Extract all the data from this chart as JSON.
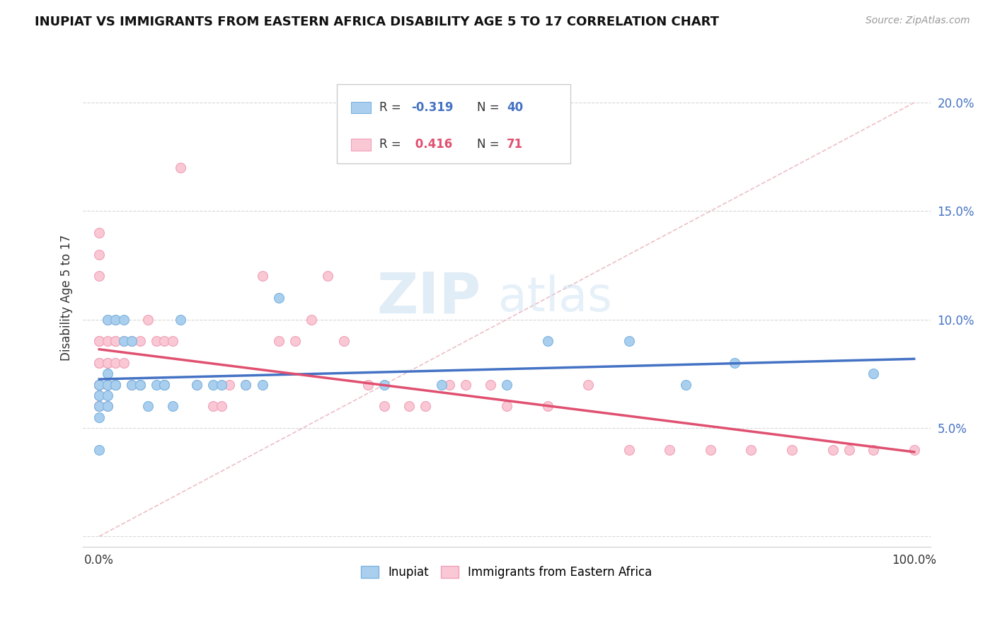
{
  "title": "INUPIAT VS IMMIGRANTS FROM EASTERN AFRICA DISABILITY AGE 5 TO 17 CORRELATION CHART",
  "source": "Source: ZipAtlas.com",
  "ylabel": "Disability Age 5 to 17",
  "xlim": [
    -0.02,
    1.02
  ],
  "ylim": [
    -0.005,
    0.225
  ],
  "inupiat_color": "#aacfee",
  "inupiat_edge_color": "#7ab3e0",
  "immigrants_color": "#f9c8d4",
  "immigrants_edge_color": "#f0a0b8",
  "inupiat_line_color": "#4472c4",
  "immigrants_line_color": "#e05070",
  "legend_label1": "Inupiat",
  "legend_label2": "Immigrants from Eastern Africa",
  "watermark_zip": "ZIP",
  "watermark_atlas": "atlas",
  "inupiat_x": [
    0.0,
    0.0,
    0.0,
    0.0,
    0.0,
    0.0,
    0.01,
    0.01,
    0.01,
    0.01,
    0.01,
    0.02,
    0.02,
    0.02,
    0.03,
    0.03,
    0.04,
    0.04,
    0.05,
    0.05,
    0.06,
    0.07,
    0.08,
    0.08,
    0.08,
    0.09,
    0.1,
    0.12,
    0.14,
    0.15,
    0.18,
    0.2,
    0.22,
    0.35,
    0.42,
    0.5,
    0.55,
    0.65,
    0.72,
    0.78,
    0.95
  ],
  "inupiat_y": [
    0.07,
    0.07,
    0.065,
    0.06,
    0.055,
    0.04,
    0.07,
    0.065,
    0.06,
    0.075,
    0.1,
    0.07,
    0.1,
    0.07,
    0.1,
    0.09,
    0.09,
    0.07,
    0.07,
    0.07,
    0.06,
    0.07,
    0.07,
    0.07,
    0.07,
    0.06,
    0.1,
    0.07,
    0.07,
    0.07,
    0.07,
    0.07,
    0.11,
    0.07,
    0.07,
    0.07,
    0.09,
    0.09,
    0.07,
    0.08,
    0.075
  ],
  "immigrants_x": [
    0.0,
    0.0,
    0.0,
    0.0,
    0.0,
    0.0,
    0.0,
    0.0,
    0.0,
    0.0,
    0.0,
    0.0,
    0.0,
    0.0,
    0.0,
    0.0,
    0.0,
    0.01,
    0.01,
    0.01,
    0.01,
    0.01,
    0.01,
    0.01,
    0.01,
    0.02,
    0.02,
    0.02,
    0.02,
    0.02,
    0.03,
    0.03,
    0.04,
    0.04,
    0.05,
    0.05,
    0.06,
    0.07,
    0.08,
    0.09,
    0.1,
    0.12,
    0.14,
    0.15,
    0.16,
    0.18,
    0.2,
    0.22,
    0.24,
    0.26,
    0.28,
    0.3,
    0.33,
    0.35,
    0.38,
    0.4,
    0.43,
    0.45,
    0.48,
    0.5,
    0.55,
    0.6,
    0.65,
    0.7,
    0.75,
    0.8,
    0.85,
    0.9,
    0.95,
    1.0,
    0.92
  ],
  "immigrants_y": [
    0.065,
    0.065,
    0.06,
    0.07,
    0.07,
    0.07,
    0.07,
    0.08,
    0.08,
    0.06,
    0.06,
    0.12,
    0.14,
    0.13,
    0.09,
    0.09,
    0.06,
    0.07,
    0.07,
    0.07,
    0.06,
    0.08,
    0.08,
    0.1,
    0.09,
    0.09,
    0.09,
    0.08,
    0.1,
    0.07,
    0.08,
    0.09,
    0.09,
    0.07,
    0.09,
    0.07,
    0.1,
    0.09,
    0.09,
    0.09,
    0.17,
    0.07,
    0.06,
    0.06,
    0.07,
    0.07,
    0.12,
    0.09,
    0.09,
    0.1,
    0.12,
    0.09,
    0.07,
    0.06,
    0.06,
    0.06,
    0.07,
    0.07,
    0.07,
    0.06,
    0.06,
    0.07,
    0.04,
    0.04,
    0.04,
    0.04,
    0.04,
    0.04,
    0.04,
    0.04,
    0.04
  ]
}
